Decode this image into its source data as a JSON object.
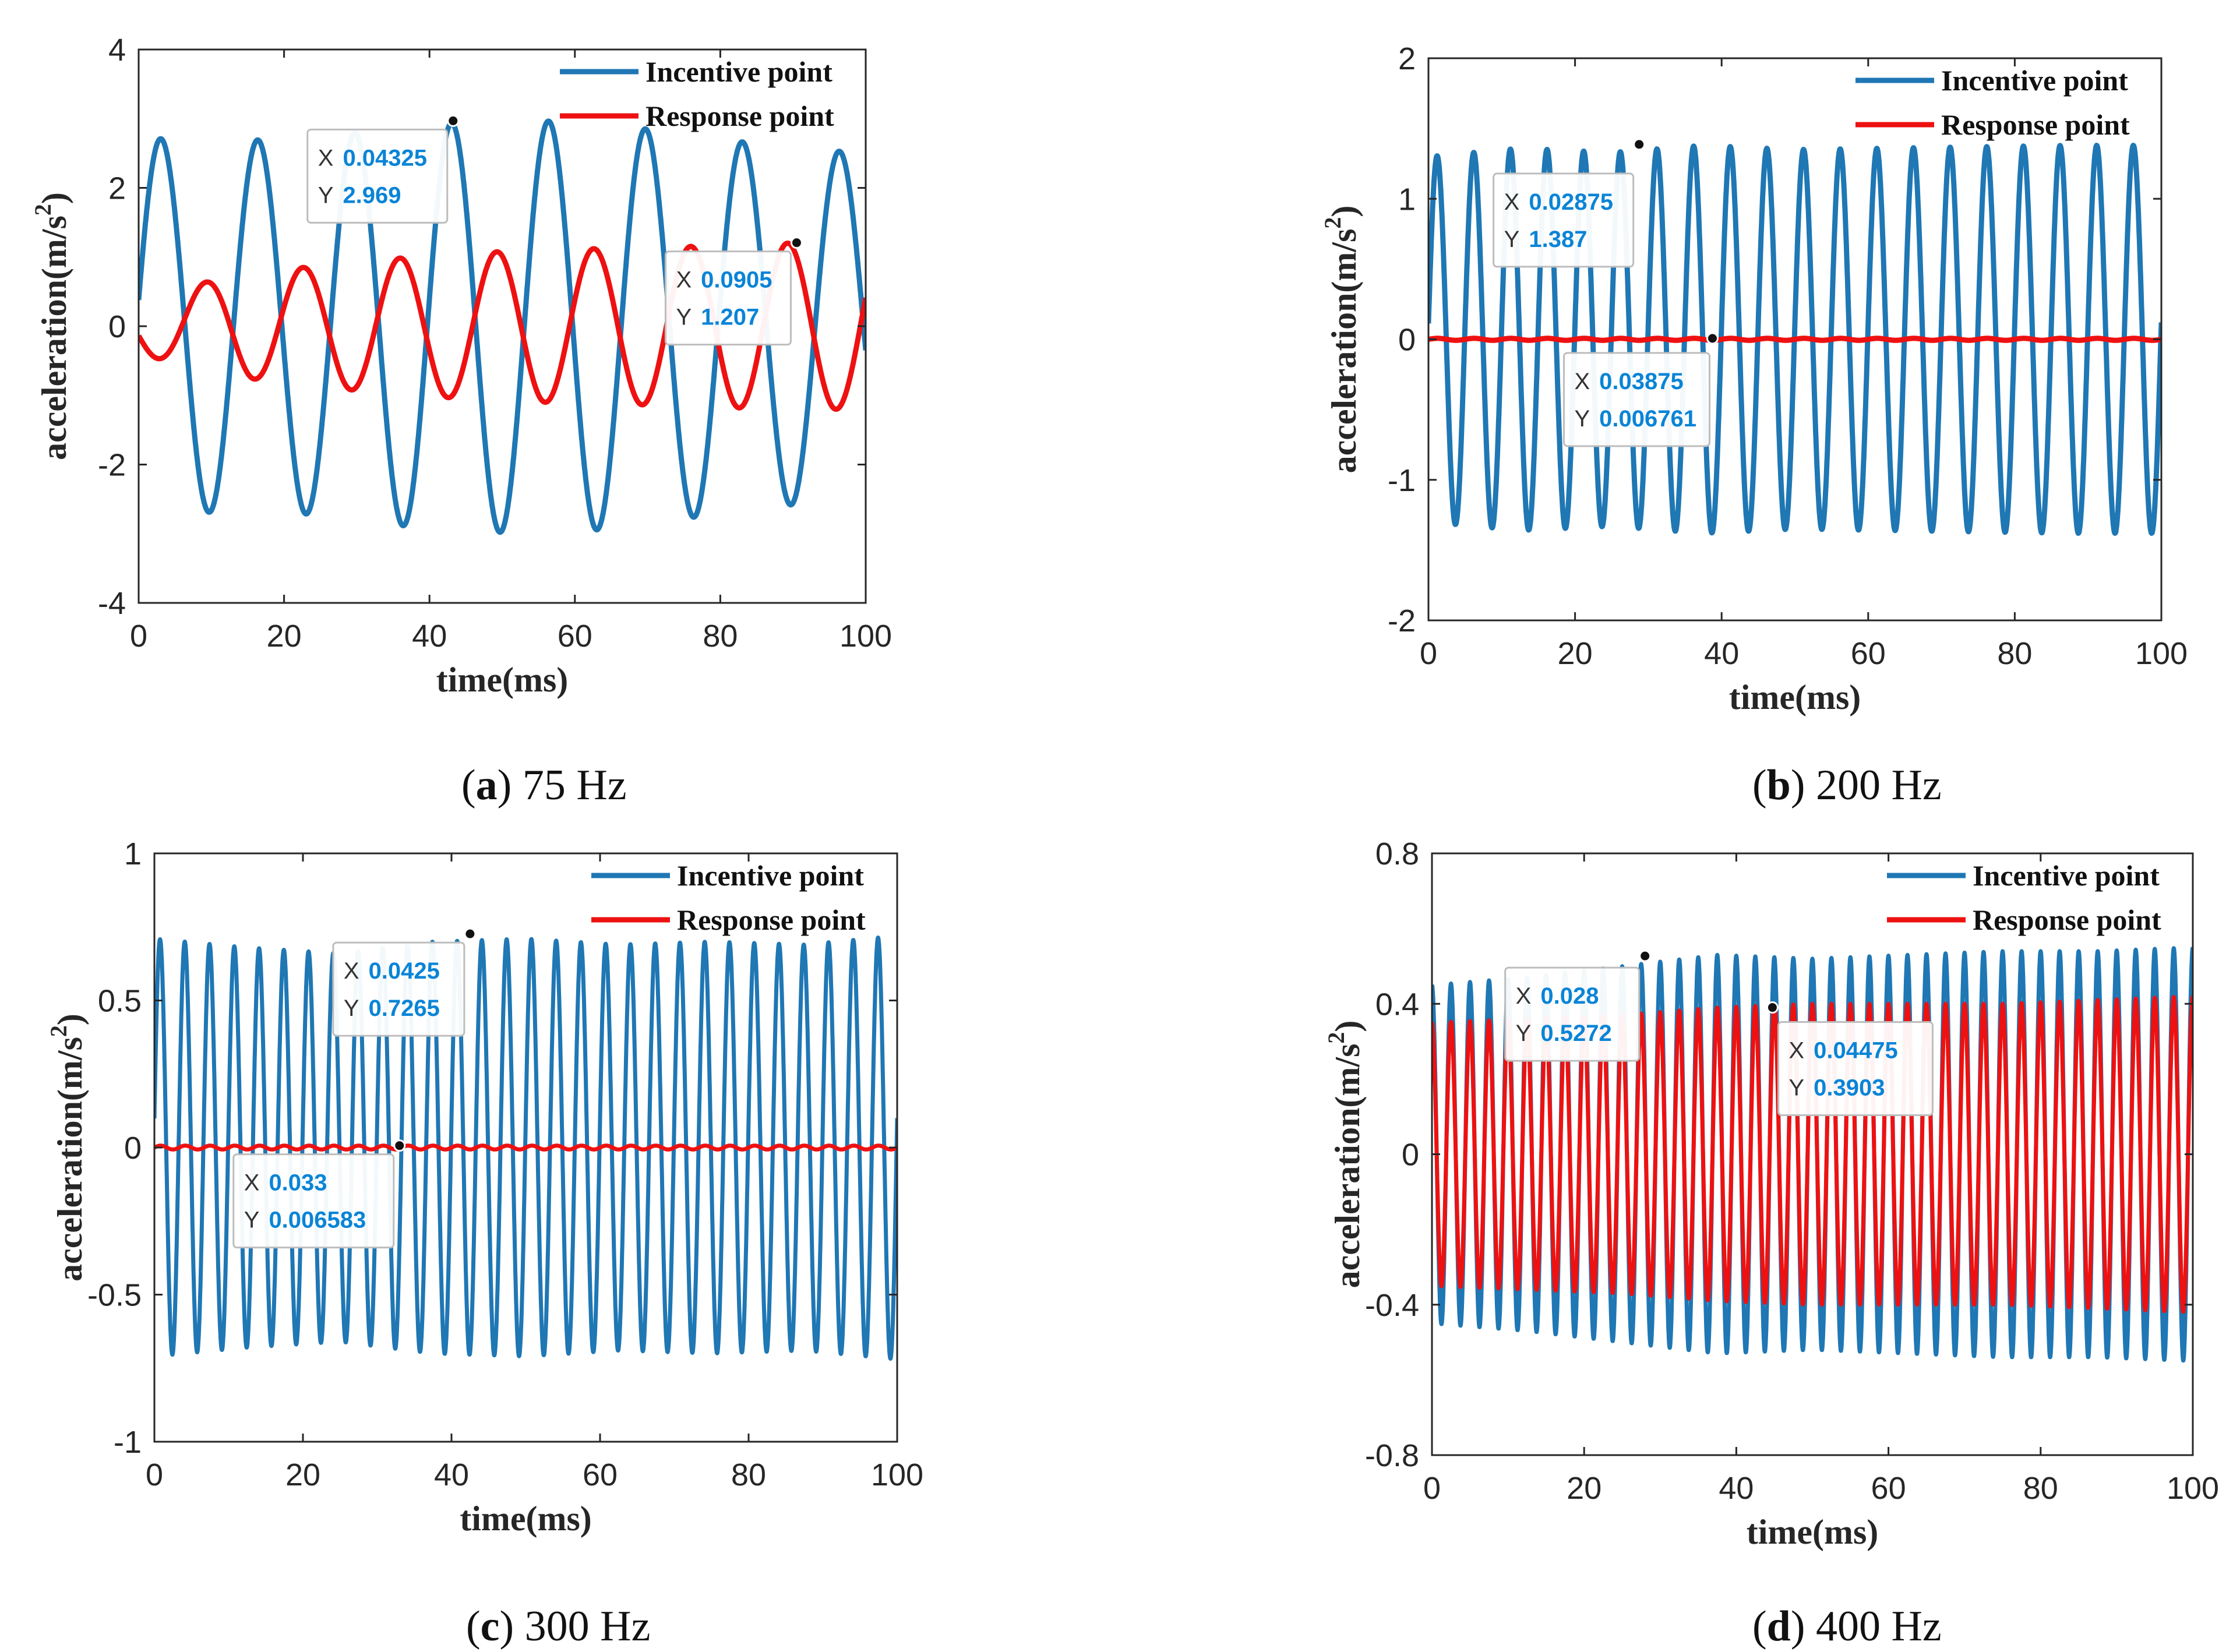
{
  "colors": {
    "incentive": "#1f77b4",
    "response": "#ee1111",
    "datatip_value": "#0a84d6",
    "axis": "#262626"
  },
  "chart_data": [
    {
      "type": "line",
      "caption_label": "a",
      "caption_text": " 75 Hz",
      "frequency_hz": 75,
      "xlabel": "time(ms)",
      "ylabel": "acceleration(m/s",
      "ylabel_sup": "2",
      "ylabel_close": ")",
      "xlim": [
        0,
        100
      ],
      "ylim": [
        -4,
        4
      ],
      "xticks": [
        0,
        20,
        40,
        60,
        80,
        100
      ],
      "xtick_labels": [
        "0",
        "20",
        "40",
        "60",
        "80",
        "100"
      ],
      "yticks": [
        -4,
        -2,
        0,
        2,
        4
      ],
      "ytick_labels": [
        "-4",
        "-2",
        "0",
        "2",
        "4"
      ],
      "series": [
        {
          "name": "Incentive point",
          "amplitude": 2.7,
          "frequency_hz": 75,
          "phase_deg": 8,
          "envelope": [
            2.72,
            2.68,
            2.72,
            2.9,
            2.98,
            2.95,
            2.78,
            2.6,
            2.5
          ]
        },
        {
          "name": "Response point",
          "amplitude": 1.0,
          "frequency_hz": 75,
          "phase_deg": 200,
          "envelope": [
            0.4,
            0.72,
            0.88,
            1.0,
            1.08,
            1.12,
            1.15,
            1.2,
            1.2
          ]
        }
      ],
      "datatips": [
        {
          "series": 0,
          "x_label": "X",
          "x_value": "0.04325",
          "y_label": "Y",
          "y_value": "2.969",
          "x": 43.25,
          "y": 2.969
        },
        {
          "series": 1,
          "x_label": "X",
          "x_value": "0.0905",
          "y_label": "Y",
          "y_value": "1.207",
          "x": 90.5,
          "y": 1.207
        }
      ]
    },
    {
      "type": "line",
      "caption_label": "b",
      "caption_text": " 200 Hz",
      "frequency_hz": 200,
      "xlabel": "time(ms)",
      "ylabel": "acceleration(m/s",
      "ylabel_sup": "2",
      "ylabel_close": ")",
      "xlim": [
        0,
        100
      ],
      "ylim": [
        -2,
        2
      ],
      "xticks": [
        0,
        20,
        40,
        60,
        80,
        100
      ],
      "xtick_labels": [
        "0",
        "20",
        "40",
        "60",
        "80",
        "100"
      ],
      "yticks": [
        -2,
        -1,
        0,
        1,
        2
      ],
      "ytick_labels": [
        "-2",
        "-1",
        "0",
        "1",
        "2"
      ],
      "series": [
        {
          "name": "Incentive point",
          "amplitude": 1.35,
          "frequency_hz": 200,
          "phase_deg": 5,
          "envelope": [
            1.3,
            1.36,
            1.33,
            1.38,
            1.35,
            1.36,
            1.37,
            1.38,
            1.38
          ]
        },
        {
          "name": "Response point",
          "amplitude": 0.007,
          "frequency_hz": 200,
          "phase_deg": 0,
          "envelope": [
            0.007,
            0.007,
            0.007,
            0.007,
            0.007,
            0.007,
            0.007,
            0.007,
            0.007
          ]
        }
      ],
      "datatips": [
        {
          "series": 0,
          "x_label": "X",
          "x_value": "0.02875",
          "y_label": "Y",
          "y_value": "1.387",
          "x": 28.75,
          "y": 1.387
        },
        {
          "series": 1,
          "x_label": "X",
          "x_value": "0.03875",
          "y_label": "Y",
          "y_value": "0.006761",
          "x": 38.75,
          "y": 0.006761
        }
      ]
    },
    {
      "type": "line",
      "caption_label": "c",
      "caption_text": " 300 Hz",
      "frequency_hz": 300,
      "xlabel": "time(ms)",
      "ylabel": "acceleration(m/s",
      "ylabel_sup": "2",
      "ylabel_close": ")",
      "xlim": [
        0,
        100
      ],
      "ylim": [
        -1,
        1
      ],
      "xticks": [
        0,
        20,
        40,
        60,
        80,
        100
      ],
      "xtick_labels": [
        "0",
        "20",
        "40",
        "60",
        "80",
        "100"
      ],
      "yticks": [
        -1,
        -0.5,
        0,
        0.5,
        1
      ],
      "ytick_labels": [
        "-1",
        "-0.5",
        "0",
        "0.5",
        "1"
      ],
      "series": [
        {
          "name": "Incentive point",
          "amplitude": 0.7,
          "frequency_hz": 300,
          "phase_deg": 8,
          "envelope": [
            0.71,
            0.68,
            0.66,
            0.7,
            0.71,
            0.69,
            0.7,
            0.69,
            0.72
          ]
        },
        {
          "name": "Response point",
          "amplitude": 0.0066,
          "frequency_hz": 300,
          "phase_deg": 0,
          "envelope": [
            0.0066,
            0.0066,
            0.0066,
            0.0066,
            0.0066,
            0.0066,
            0.0066,
            0.0066,
            0.0066
          ]
        }
      ],
      "datatips": [
        {
          "series": 0,
          "x_label": "X",
          "x_value": "0.0425",
          "y_label": "Y",
          "y_value": "0.7265",
          "x": 42.5,
          "y": 0.7265
        },
        {
          "series": 1,
          "x_label": "X",
          "x_value": "0.033",
          "y_label": "Y",
          "y_value": "0.006583",
          "x": 33,
          "y": 0.006583
        }
      ]
    },
    {
      "type": "line",
      "caption_label": "d",
      "caption_text": " 400 Hz",
      "frequency_hz": 400,
      "xlabel": "time(ms)",
      "ylabel": "acceleration(m/s",
      "ylabel_sup": "2",
      "ylabel_close": ")",
      "xlim": [
        0,
        100
      ],
      "ylim": [
        -0.8,
        0.8
      ],
      "xticks": [
        0,
        20,
        40,
        60,
        80,
        100
      ],
      "xtick_labels": [
        "0",
        "20",
        "40",
        "60",
        "80",
        "100"
      ],
      "yticks": [
        -0.8,
        -0.4,
        0,
        0.4,
        0.8
      ],
      "ytick_labels": [
        "-0.8",
        "-0.4",
        "0",
        "0.4",
        "0.8"
      ],
      "series": [
        {
          "name": "Incentive point",
          "amplitude": 0.48,
          "frequency_hz": 400,
          "phase_deg": 90,
          "envelope": [
            0.45,
            0.47,
            0.5,
            0.53,
            0.52,
            0.53,
            0.54,
            0.54,
            0.55
          ]
        },
        {
          "name": "Response point",
          "amplitude": 0.38,
          "frequency_hz": 400,
          "phase_deg": 90,
          "envelope": [
            0.35,
            0.36,
            0.37,
            0.39,
            0.4,
            0.4,
            0.4,
            0.41,
            0.42
          ]
        }
      ],
      "datatips": [
        {
          "series": 0,
          "x_label": "X",
          "x_value": "0.028",
          "y_label": "Y",
          "y_value": "0.5272",
          "x": 28,
          "y": 0.5272
        },
        {
          "series": 1,
          "x_label": "X",
          "x_value": "0.04475",
          "y_label": "Y",
          "y_value": "0.3903",
          "x": 44.75,
          "y": 0.3903
        }
      ]
    }
  ]
}
